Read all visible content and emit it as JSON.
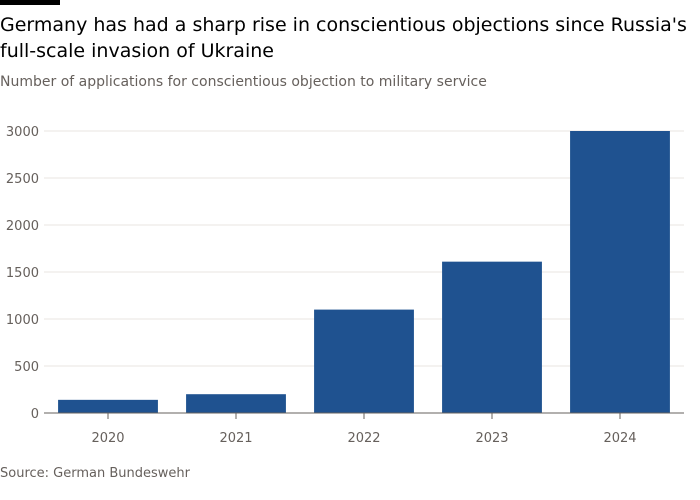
{
  "title": "Germany has had a sharp rise in conscientious objections since Russia's full-scale invasion of Ukraine",
  "subtitle": "Number of applications for conscientious objection to military service",
  "source": "Source: German Bundeswehr",
  "colors": {
    "bar": "#1f5290",
    "grid": "#e9e6e2",
    "axis": "#66605c",
    "tick_text": "#66605c"
  },
  "chart_data": {
    "type": "bar",
    "title": "Germany has had a sharp rise in conscientious objections since Russia's full-scale invasion of Ukraine",
    "subtitle": "Number of applications for conscientious objection to military service",
    "xlabel": "",
    "ylabel": "",
    "categories": [
      "2020",
      "2021",
      "2022",
      "2023",
      "2024"
    ],
    "values": [
      140,
      200,
      1100,
      1610,
      3000
    ],
    "ylim": [
      0,
      3000
    ],
    "yticks": [
      0,
      500,
      1000,
      1500,
      2000,
      2500,
      3000
    ],
    "ytick_labels": [
      "0",
      "500",
      "1000",
      "1500",
      "2000",
      "2500",
      "3000"
    ],
    "grid": true,
    "legend": "none"
  }
}
